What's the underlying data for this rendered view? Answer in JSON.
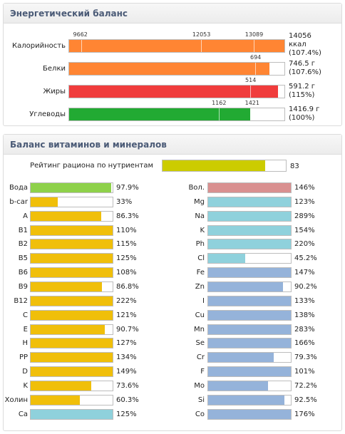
{
  "energy": {
    "title": "Энергетический баланс",
    "rows": [
      {
        "label": "Калорийность",
        "fill_pct": 100,
        "color": "#ff8533",
        "markers": [
          {
            "text": "9662",
            "pct": 5.5
          },
          {
            "text": "12053",
            "pct": 61.4
          },
          {
            "text": "13089",
            "pct": 85.7
          }
        ],
        "value_line1": "14056",
        "value_line2": "ккал",
        "value_line3": "(107.4%)"
      },
      {
        "label": "Белки",
        "fill_pct": 93,
        "color": "#ff8533",
        "markers": [
          {
            "text": "694",
            "pct": 86.4
          }
        ],
        "value_line1": "746.5 г",
        "value_line2": "(107.6%)"
      },
      {
        "label": "Жиры",
        "fill_pct": 97,
        "color": "#f03c3c",
        "markers": [
          {
            "text": "514",
            "pct": 84.1
          }
        ],
        "value_line1": "591.2 г",
        "value_line2": "(115%)"
      },
      {
        "label": "Углеводы",
        "fill_pct": 84,
        "color": "#22aa33",
        "markers": [
          {
            "text": "1162",
            "pct": 69.5
          },
          {
            "text": "1421",
            "pct": 84.8
          }
        ],
        "value_line1": "1416.9 г",
        "value_line2": "(100%)"
      }
    ]
  },
  "vitamins": {
    "title": "Баланс витаминов и минералов",
    "rating": {
      "label": "Рейтинг рациона по нутриентам",
      "value": "83",
      "fill_pct": 83,
      "color": "#cccc00"
    },
    "left": [
      {
        "label": "Вода",
        "value": "97.9%",
        "fill_pct": 97.9,
        "color": "#8ed14a"
      },
      {
        "label": "b-car",
        "value": "33%",
        "fill_pct": 33,
        "color": "#f0bf0a"
      },
      {
        "label": "A",
        "value": "86.3%",
        "fill_pct": 86.3,
        "color": "#f0bf0a"
      },
      {
        "label": "B1",
        "value": "110%",
        "fill_pct": 100,
        "color": "#f0bf0a"
      },
      {
        "label": "B2",
        "value": "115%",
        "fill_pct": 100,
        "color": "#f0bf0a"
      },
      {
        "label": "B5",
        "value": "125%",
        "fill_pct": 100,
        "color": "#f0bf0a"
      },
      {
        "label": "B6",
        "value": "108%",
        "fill_pct": 100,
        "color": "#f0bf0a"
      },
      {
        "label": "B9",
        "value": "86.8%",
        "fill_pct": 86.8,
        "color": "#f0bf0a"
      },
      {
        "label": "B12",
        "value": "222%",
        "fill_pct": 100,
        "color": "#f0bf0a"
      },
      {
        "label": "C",
        "value": "121%",
        "fill_pct": 100,
        "color": "#f0bf0a"
      },
      {
        "label": "E",
        "value": "90.7%",
        "fill_pct": 90.7,
        "color": "#f0bf0a"
      },
      {
        "label": "H",
        "value": "127%",
        "fill_pct": 100,
        "color": "#f0bf0a"
      },
      {
        "label": "PP",
        "value": "134%",
        "fill_pct": 100,
        "color": "#f0bf0a"
      },
      {
        "label": "D",
        "value": "149%",
        "fill_pct": 100,
        "color": "#f0bf0a"
      },
      {
        "label": "K",
        "value": "73.6%",
        "fill_pct": 73.6,
        "color": "#f0bf0a"
      },
      {
        "label": "Холин",
        "value": "60.3%",
        "fill_pct": 60.3,
        "color": "#f0bf0a"
      },
      {
        "label": "Ca",
        "value": "125%",
        "fill_pct": 100,
        "color": "#8fd1dc"
      }
    ],
    "right": [
      {
        "label": "Вол.",
        "value": "146%",
        "fill_pct": 100,
        "color": "#d99090"
      },
      {
        "label": "Mg",
        "value": "123%",
        "fill_pct": 100,
        "color": "#8fd1dc"
      },
      {
        "label": "Na",
        "value": "289%",
        "fill_pct": 100,
        "color": "#8fd1dc"
      },
      {
        "label": "K",
        "value": "154%",
        "fill_pct": 100,
        "color": "#8fd1dc"
      },
      {
        "label": "Ph",
        "value": "220%",
        "fill_pct": 100,
        "color": "#8fd1dc"
      },
      {
        "label": "Cl",
        "value": "45.2%",
        "fill_pct": 45.2,
        "color": "#8fd1dc"
      },
      {
        "label": "Fe",
        "value": "147%",
        "fill_pct": 100,
        "color": "#95b3da"
      },
      {
        "label": "Zn",
        "value": "90.2%",
        "fill_pct": 90.2,
        "color": "#95b3da"
      },
      {
        "label": "I",
        "value": "133%",
        "fill_pct": 100,
        "color": "#95b3da"
      },
      {
        "label": "Cu",
        "value": "138%",
        "fill_pct": 100,
        "color": "#95b3da"
      },
      {
        "label": "Mn",
        "value": "283%",
        "fill_pct": 100,
        "color": "#95b3da"
      },
      {
        "label": "Se",
        "value": "166%",
        "fill_pct": 100,
        "color": "#95b3da"
      },
      {
        "label": "Cr",
        "value": "79.3%",
        "fill_pct": 79.3,
        "color": "#95b3da"
      },
      {
        "label": "F",
        "value": "101%",
        "fill_pct": 100,
        "color": "#95b3da"
      },
      {
        "label": "Mo",
        "value": "72.2%",
        "fill_pct": 72.2,
        "color": "#95b3da"
      },
      {
        "label": "Si",
        "value": "92.5%",
        "fill_pct": 92.5,
        "color": "#95b3da"
      },
      {
        "label": "Co",
        "value": "176%",
        "fill_pct": 100,
        "color": "#95b3da"
      }
    ]
  }
}
